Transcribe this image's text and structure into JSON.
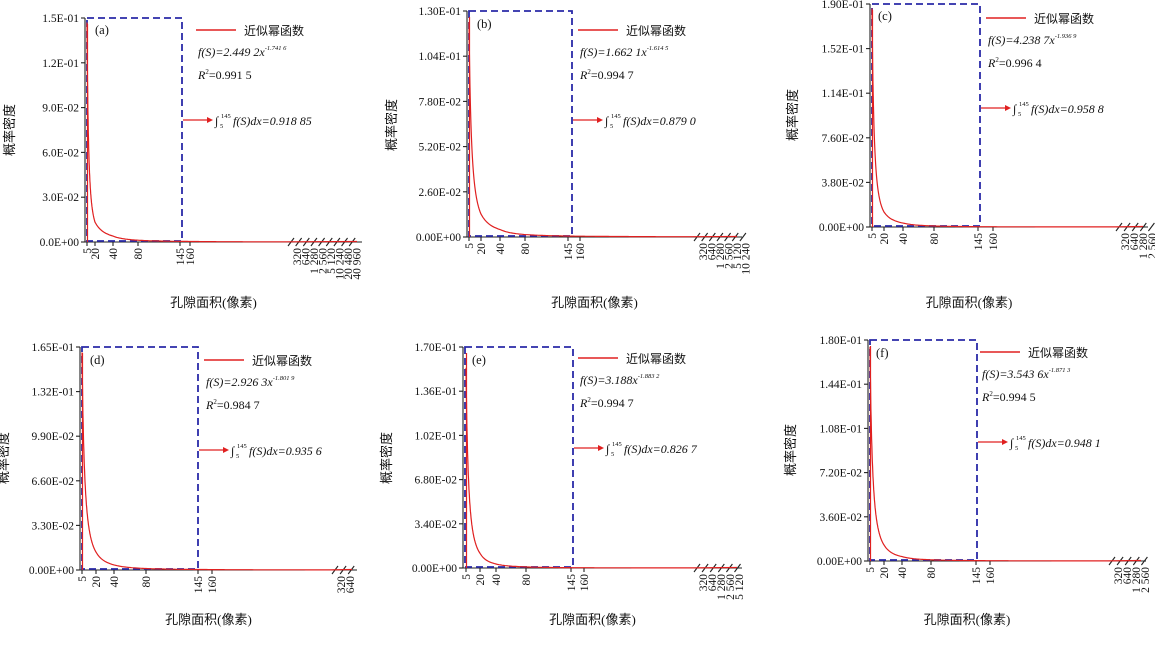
{
  "chart_data": [
    {
      "type": "line",
      "panel_label": "(a)",
      "ylabel": "概率密度",
      "xlabel": "孔隙面积(像素)",
      "y_ticks": [
        "0.0E+00",
        "3.0E-02",
        "6.0E-02",
        "9.0E-02",
        "1.2E-01",
        "1.5E-01"
      ],
      "ylim": [
        0,
        0.15
      ],
      "x_ticks_near": [
        "5",
        "20",
        "40",
        "80",
        "145",
        "160"
      ],
      "x_ticks_far": [
        "320",
        "640",
        "1 280",
        "2 560",
        "5 120",
        "10 240",
        "20 480",
        "40 960"
      ],
      "legend_label": "近似幂函数",
      "fit_eq": "f(S)=2.449 2x",
      "fit_exp": "-1.741 6",
      "r2_label": "R",
      "r2_value": "=0.991 5",
      "integral_label": "f(S)dx=0.918 85",
      "integral_limits": "145",
      "integral_lower": "5",
      "fit": {
        "a": 2.4492,
        "b": 1.7416,
        "x_min": 5,
        "x_max": 320
      }
    },
    {
      "type": "line",
      "panel_label": "(b)",
      "ylabel": "概率密度",
      "xlabel": "孔隙面积(像素)",
      "y_ticks": [
        "0.00E+00",
        "2.60E-02",
        "5.20E-02",
        "7.80E-02",
        "1.04E-01",
        "1.30E-01"
      ],
      "ylim": [
        0,
        0.13
      ],
      "x_ticks_near": [
        "5",
        "20",
        "40",
        "80",
        "145",
        "160"
      ],
      "x_ticks_far": [
        "320",
        "640",
        "1 280",
        "2 560",
        "5 120",
        "10 240"
      ],
      "legend_label": "近似幂函数",
      "fit_eq": "f(S)=1.662 1x",
      "fit_exp": "-1.614 5",
      "r2_label": "R",
      "r2_value": "=0.994 7",
      "integral_label": "f(S)dx=0.879 0",
      "integral_limits": "145",
      "integral_lower": "5",
      "fit": {
        "a": 1.6621,
        "b": 1.6145,
        "x_min": 5,
        "x_max": 320
      }
    },
    {
      "type": "line",
      "panel_label": "(c)",
      "ylabel": "概率密度",
      "xlabel": "孔隙面积(像素)",
      "y_ticks": [
        "0.00E+00",
        "3.80E-02",
        "7.60E-02",
        "1.14E-01",
        "1.52E-01",
        "1.90E-01"
      ],
      "ylim": [
        0,
        0.19
      ],
      "x_ticks_near": [
        "5",
        "20",
        "40",
        "80",
        "145",
        "160"
      ],
      "x_ticks_far": [
        "320",
        "640",
        "1 280",
        "2 560"
      ],
      "legend_label": "近似幂函数",
      "fit_eq": "f(S)=4.238 7x",
      "fit_exp": "-1.936 9",
      "r2_label": "R",
      "r2_value": "=0.996 4",
      "integral_label": "f(S)dx=0.958 8",
      "integral_limits": "145",
      "integral_lower": "5",
      "fit": {
        "a": 4.2387,
        "b": 1.9369,
        "x_min": 5,
        "x_max": 320
      }
    },
    {
      "type": "line",
      "panel_label": "(d)",
      "ylabel": "概率密度",
      "xlabel": "孔隙面积(像素)",
      "y_ticks": [
        "0.00E+00",
        "3.30E-02",
        "6.60E-02",
        "9.90E-02",
        "1.32E-01",
        "1.65E-01"
      ],
      "ylim": [
        0,
        0.165
      ],
      "x_ticks_near": [
        "5",
        "20",
        "40",
        "80",
        "145",
        "160"
      ],
      "x_ticks_far": [
        "320",
        "640"
      ],
      "legend_label": "近似幂函数",
      "fit_eq": "f(S)=2.926 3x",
      "fit_exp": "-1.801 9",
      "r2_label": "R",
      "r2_value": "=0.984 7",
      "integral_label": "f(S)dx=0.935 6",
      "integral_limits": "145",
      "integral_lower": "5",
      "fit": {
        "a": 2.9263,
        "b": 1.8019,
        "x_min": 5,
        "x_max": 320
      }
    },
    {
      "type": "line",
      "panel_label": "(e)",
      "ylabel": "概率密度",
      "xlabel": "孔隙面积(像素)",
      "y_ticks": [
        "0.00E+00",
        "3.40E-02",
        "6.80E-02",
        "1.02E-01",
        "1.36E-01",
        "1.70E-01"
      ],
      "ylim": [
        0,
        0.17
      ],
      "x_ticks_near": [
        "5",
        "20",
        "40",
        "80",
        "145",
        "160"
      ],
      "x_ticks_far": [
        "320",
        "640",
        "1 280",
        "2 560",
        "5 120"
      ],
      "legend_label": "近似幂函数",
      "fit_eq": "f(S)=3.188x",
      "fit_exp": "-1.883 2",
      "r2_label": "R",
      "r2_value": "=0.994 7",
      "integral_label": "f(S)dx=0.826 7",
      "integral_limits": "145",
      "integral_lower": "5",
      "fit": {
        "a": 3.188,
        "b": 1.8832,
        "x_min": 5,
        "x_max": 320
      }
    },
    {
      "type": "line",
      "panel_label": "(f)",
      "ylabel": "概率密度",
      "xlabel": "孔隙面积(像素)",
      "y_ticks": [
        "0.00E+00",
        "3.60E-02",
        "7.20E-02",
        "1.08E-01",
        "1.44E-01",
        "1.80E-01"
      ],
      "ylim": [
        0,
        0.18
      ],
      "x_ticks_near": [
        "5",
        "20",
        "40",
        "80",
        "145",
        "160"
      ],
      "x_ticks_far": [
        "320",
        "640",
        "1 280",
        "2 560"
      ],
      "legend_label": "近似幂函数",
      "fit_eq": "f(S)=3.543 6x",
      "fit_exp": "-1.871 3",
      "r2_label": "R",
      "r2_value": "=0.994 5",
      "integral_label": "f(S)dx=0.948 1",
      "integral_limits": "145",
      "integral_lower": "5",
      "fit": {
        "a": 3.5436,
        "b": 1.8713,
        "x_min": 5,
        "x_max": 320
      }
    }
  ],
  "colors": {
    "curve": "#e02020",
    "box": "#2a2aa8",
    "axis": "#222222"
  }
}
